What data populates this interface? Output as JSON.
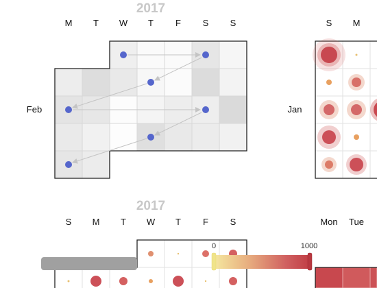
{
  "panel_a": {
    "year": "2017",
    "days": [
      "M",
      "T",
      "W",
      "T",
      "F",
      "S",
      "S"
    ],
    "month": "Feb",
    "dot_color": "#5566cc"
  },
  "panel_b": {
    "days": [
      "S",
      "M"
    ],
    "month": "Jan"
  },
  "panel_c": {
    "year": "2017",
    "days": [
      "S",
      "M",
      "T",
      "W",
      "T",
      "F",
      "S"
    ]
  },
  "panel_d": {
    "days": [
      "Mon",
      "Tue"
    ]
  },
  "legend": {
    "min_label": "0",
    "max_label": "1000",
    "colors": [
      "#f5e9a0",
      "#e8b080",
      "#d06060",
      "#c03c44"
    ],
    "slider_track_color": "#a0a0a0"
  }
}
